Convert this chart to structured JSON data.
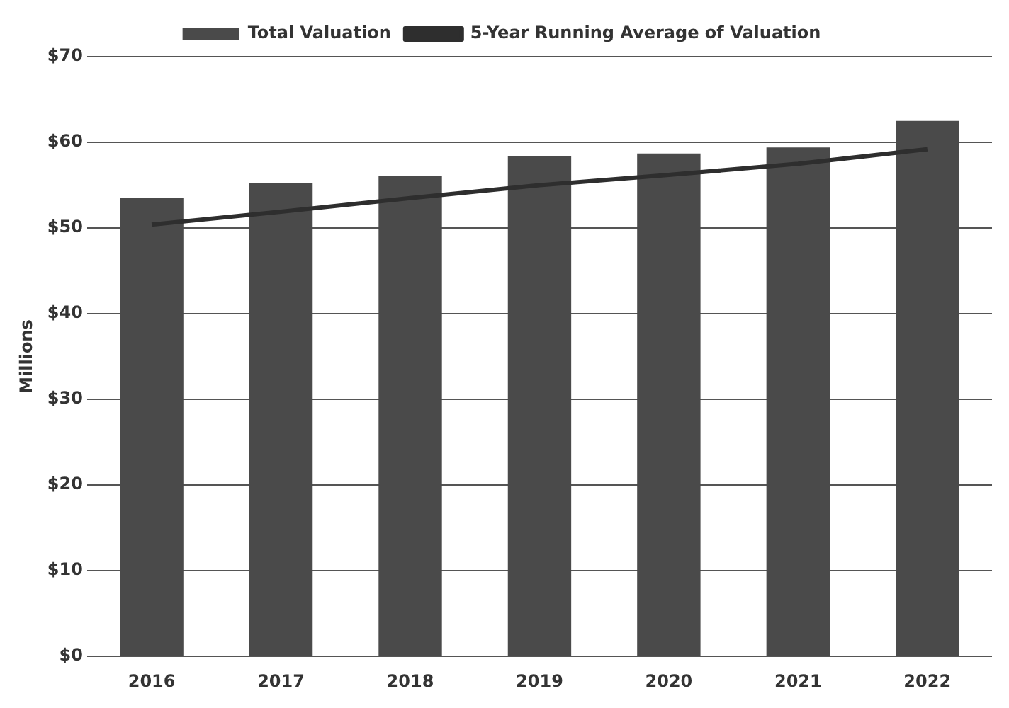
{
  "chart_data": {
    "type": "bar",
    "categories": [
      "2016",
      "2017",
      "2018",
      "2019",
      "2020",
      "2021",
      "2022"
    ],
    "ylabel": "Millions",
    "ylim": [
      0,
      70
    ],
    "yticks": [
      {
        "value": 0,
        "label": "$0"
      },
      {
        "value": 10,
        "label": "$10"
      },
      {
        "value": 20,
        "label": "$20"
      },
      {
        "value": 30,
        "label": "$30"
      },
      {
        "value": 40,
        "label": "$40"
      },
      {
        "value": 50,
        "label": "$50"
      },
      {
        "value": 60,
        "label": "$60"
      },
      {
        "value": 70,
        "label": "$70"
      }
    ],
    "grid": "y",
    "legend": "top",
    "series": [
      {
        "name": "Total Valuation",
        "color": "#4a4a4a",
        "values": [
          53.5,
          55.2,
          56.1,
          58.4,
          58.7,
          59.4,
          62.5
        ]
      },
      {
        "name": "5-Year Running Average of Valuation",
        "type": "line",
        "color": "#2e2e2e",
        "marker": "none",
        "values": [
          50.4,
          51.9,
          53.5,
          55.0,
          56.2,
          57.5,
          59.2
        ]
      }
    ]
  }
}
